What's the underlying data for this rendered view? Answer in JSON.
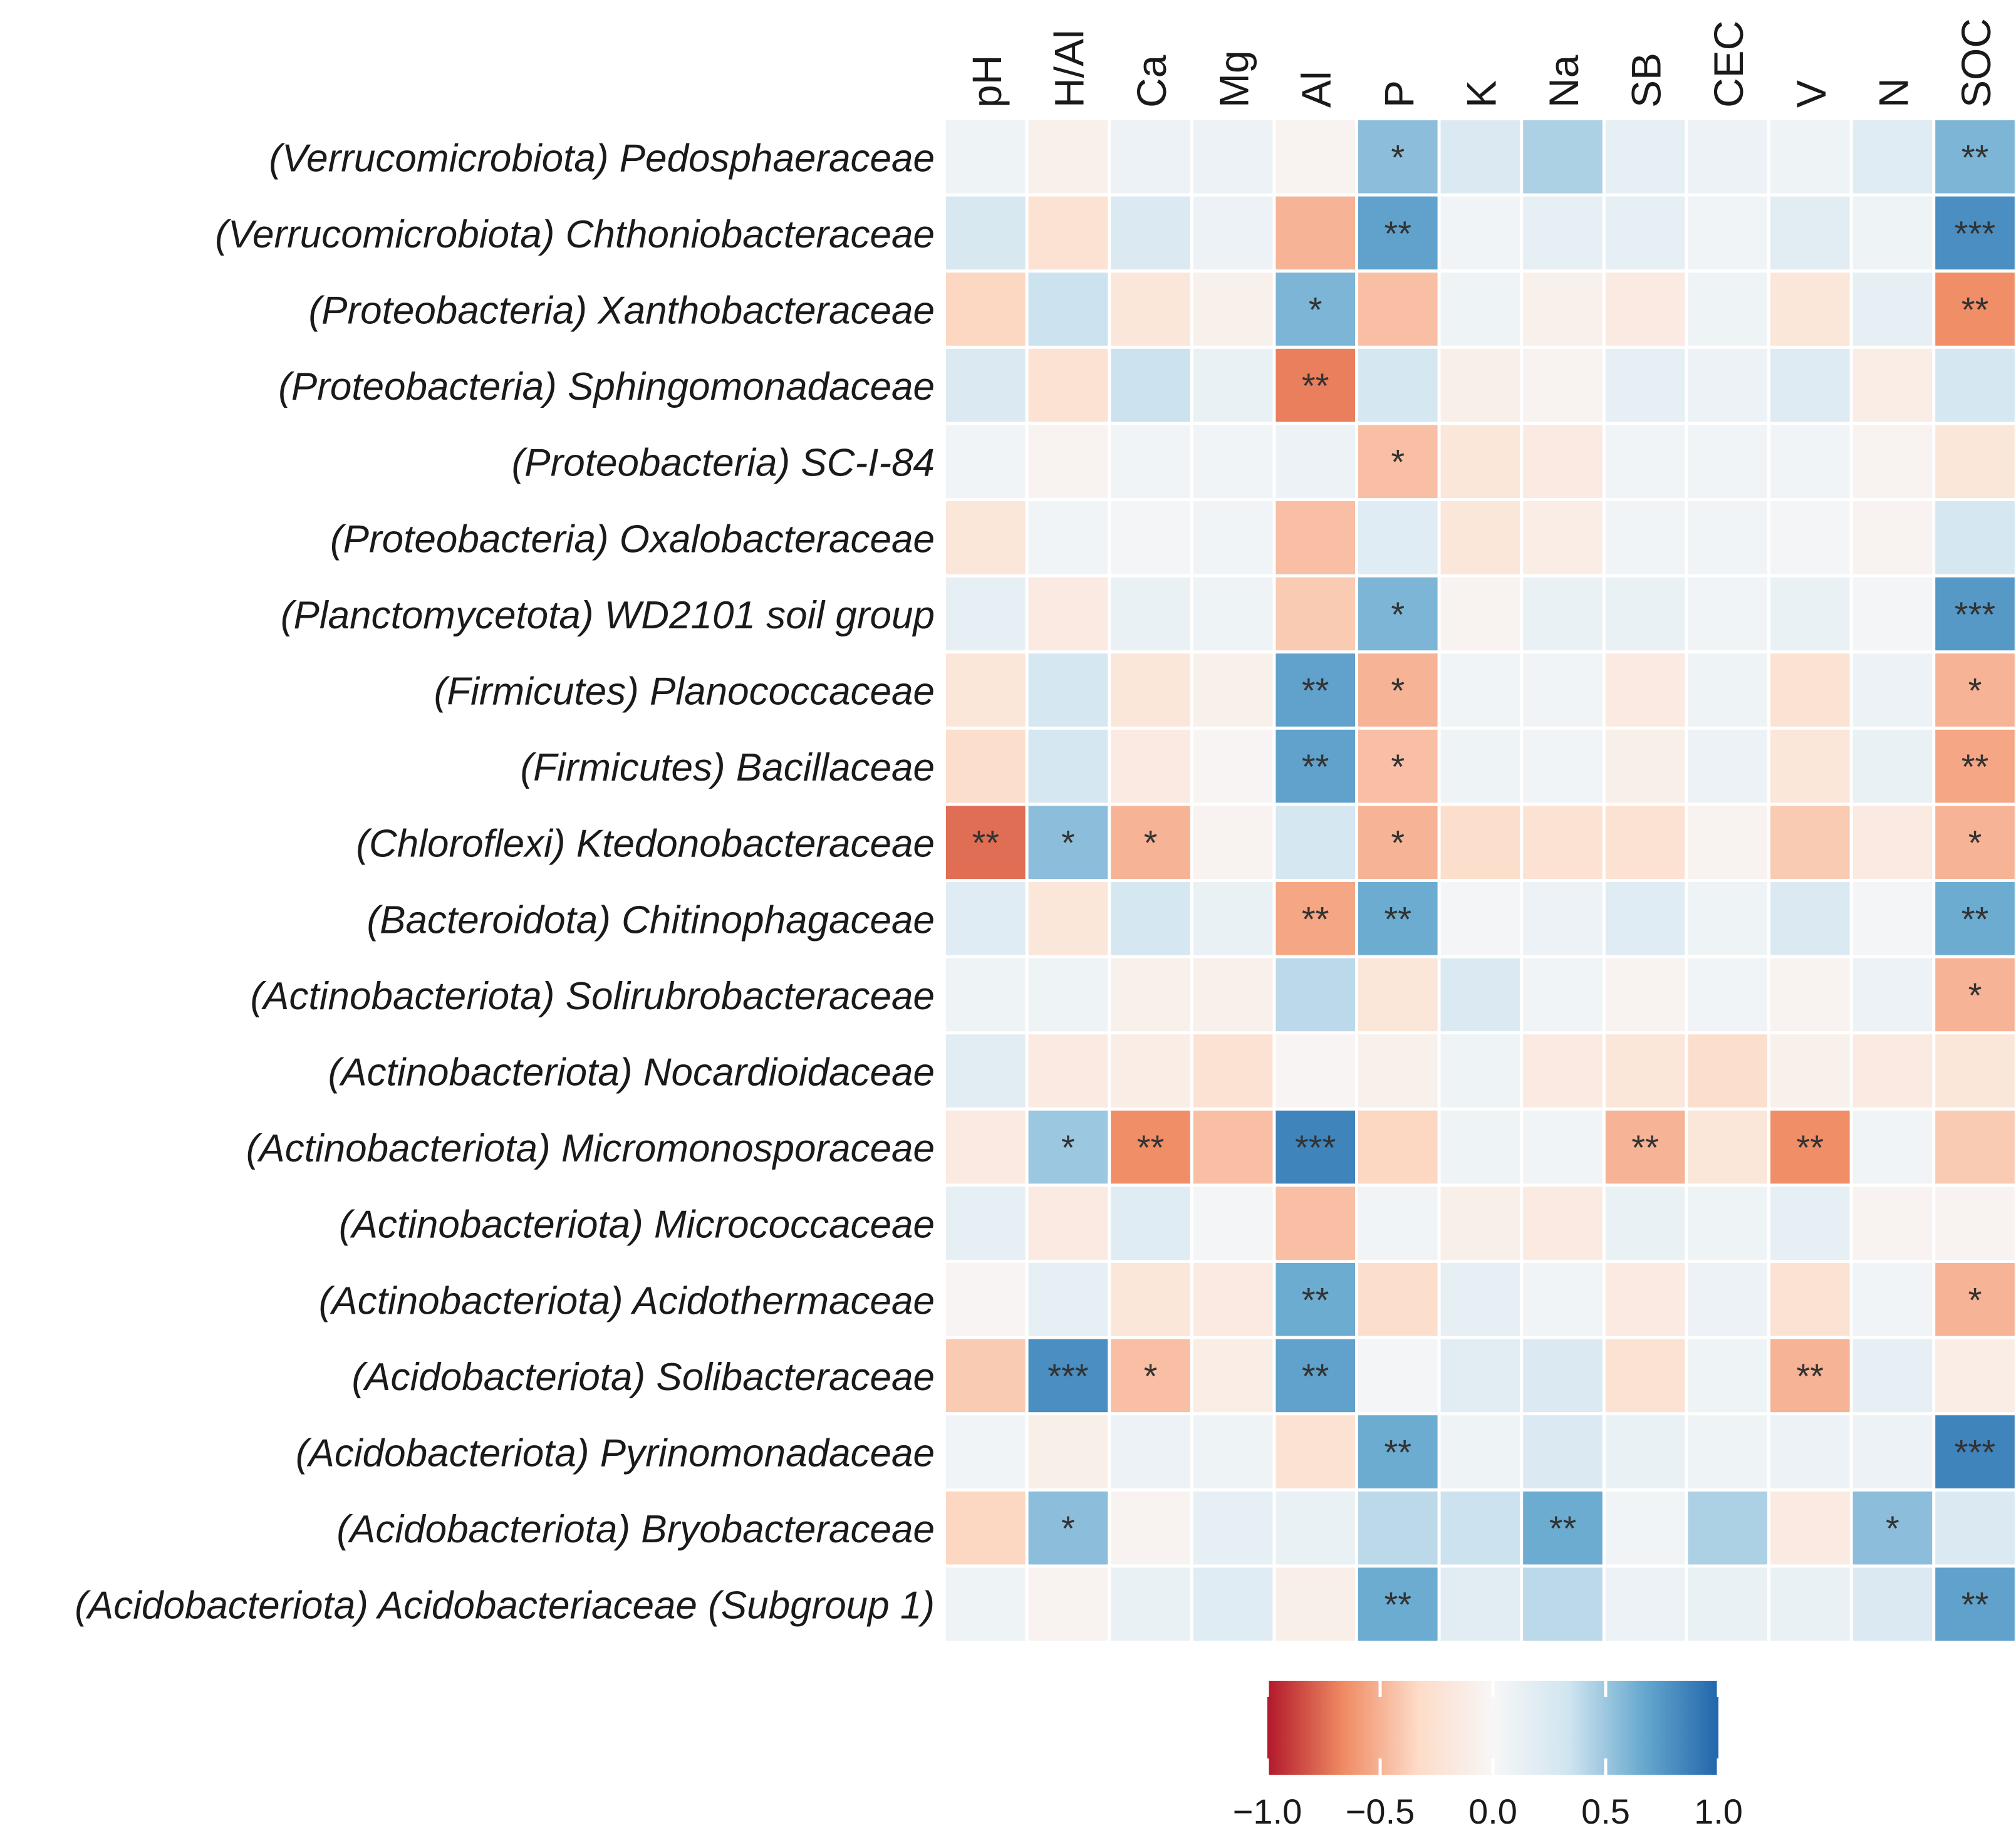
{
  "chart_data": {
    "type": "heatmap",
    "title": "",
    "columns": [
      "pH",
      "H/Al",
      "Ca",
      "Mg",
      "Al",
      "P",
      "K",
      "Na",
      "SB",
      "CEC",
      "V",
      "N",
      "SOC"
    ],
    "rows": [
      "(Verrucomicrobiota) Pedosphaeraceae",
      "(Verrucomicrobiota) Chthoniobacteraceae",
      "(Proteobacteria) Xanthobacteraceae",
      "(Proteobacteria) Sphingomonadaceae",
      "(Proteobacteria) SC-I-84",
      "(Proteobacteria) Oxalobacteraceae",
      "(Planctomycetota) WD2101 soil group",
      "(Firmicutes) Planococcaceae",
      "(Firmicutes) Bacillaceae",
      "(Chloroflexi) Ktedonobacteraceae",
      "(Bacteroidota) Chitinophagaceae",
      "(Actinobacteriota) Solirubrobacteraceae",
      "(Actinobacteriota) Nocardioidaceae",
      "(Actinobacteriota) Micromonosporaceae",
      "(Actinobacteriota) Micrococcaceae",
      "(Actinobacteriota) Acidothermaceae",
      "(Acidobacteriota) Solibacteraceae",
      "(Acidobacteriota) Pyrinomonadaceae",
      "(Acidobacteriota) Bryobacteraceae",
      "(Acidobacteriota) Acidobacteriaceae (Subgroup 1)"
    ],
    "values": [
      [
        0.08,
        -0.08,
        0.1,
        0.1,
        -0.05,
        0.55,
        0.25,
        0.45,
        0.15,
        0.1,
        0.08,
        0.2,
        0.6
      ],
      [
        0.28,
        -0.25,
        0.25,
        0.1,
        -0.5,
        0.7,
        0.05,
        0.15,
        0.15,
        0.05,
        0.18,
        0.08,
        0.8
      ],
      [
        -0.35,
        0.35,
        -0.2,
        -0.08,
        0.6,
        -0.45,
        0.08,
        -0.08,
        -0.15,
        0.08,
        -0.2,
        0.15,
        -0.65
      ],
      [
        0.25,
        -0.25,
        0.35,
        0.12,
        -0.7,
        0.3,
        -0.1,
        -0.05,
        0.15,
        0.1,
        0.22,
        -0.12,
        0.3
      ],
      [
        0.05,
        -0.05,
        0.05,
        0.05,
        0.1,
        -0.45,
        -0.2,
        -0.15,
        0.05,
        0.05,
        0.05,
        -0.05,
        -0.2
      ],
      [
        -0.2,
        0.05,
        0.03,
        0.05,
        -0.45,
        0.2,
        -0.2,
        -0.12,
        0.05,
        0.05,
        0.03,
        -0.05,
        0.3
      ],
      [
        0.15,
        -0.15,
        0.12,
        0.08,
        -0.4,
        0.6,
        -0.05,
        0.12,
        0.12,
        0.05,
        0.12,
        0.03,
        0.75
      ],
      [
        -0.2,
        0.3,
        -0.2,
        -0.08,
        0.7,
        -0.5,
        0.05,
        0.05,
        -0.15,
        0.08,
        -0.25,
        0.1,
        -0.5
      ],
      [
        -0.3,
        0.3,
        -0.15,
        -0.03,
        0.7,
        -0.45,
        0.08,
        0.05,
        -0.1,
        0.1,
        -0.2,
        0.12,
        -0.55
      ],
      [
        -0.75,
        0.55,
        -0.5,
        -0.05,
        0.3,
        -0.5,
        -0.3,
        -0.25,
        -0.25,
        -0.05,
        -0.4,
        -0.15,
        -0.5
      ],
      [
        0.2,
        -0.2,
        0.3,
        0.12,
        -0.55,
        0.65,
        0.03,
        0.1,
        0.2,
        0.08,
        0.25,
        0.03,
        0.65
      ],
      [
        0.08,
        0.08,
        -0.08,
        -0.08,
        0.4,
        -0.2,
        0.25,
        0.05,
        -0.05,
        0.05,
        -0.05,
        0.1,
        -0.5
      ],
      [
        0.18,
        -0.15,
        -0.12,
        -0.25,
        -0.03,
        -0.08,
        0.08,
        -0.15,
        -0.2,
        -0.3,
        -0.08,
        -0.15,
        -0.2
      ],
      [
        -0.15,
        0.5,
        -0.65,
        -0.45,
        0.85,
        -0.35,
        0.08,
        0.05,
        -0.5,
        -0.2,
        -0.65,
        0.05,
        -0.4
      ],
      [
        0.15,
        -0.15,
        0.2,
        0.03,
        -0.45,
        0.05,
        -0.1,
        -0.15,
        0.12,
        0.08,
        0.15,
        -0.05,
        -0.05
      ],
      [
        -0.03,
        0.15,
        -0.2,
        -0.15,
        0.65,
        -0.3,
        0.15,
        0.05,
        -0.15,
        0.1,
        -0.25,
        0.05,
        -0.5
      ],
      [
        -0.4,
        0.8,
        -0.45,
        -0.12,
        0.7,
        0.03,
        0.18,
        0.25,
        -0.25,
        0.08,
        -0.5,
        0.15,
        -0.12
      ],
      [
        0.05,
        -0.1,
        0.1,
        0.08,
        -0.25,
        0.65,
        0.08,
        0.25,
        0.12,
        0.08,
        0.1,
        0.1,
        0.85
      ],
      [
        -0.35,
        0.55,
        -0.05,
        0.15,
        0.12,
        0.4,
        0.35,
        0.65,
        0.05,
        0.45,
        -0.15,
        0.55,
        0.25
      ],
      [
        0.08,
        -0.05,
        0.12,
        0.2,
        -0.1,
        0.65,
        0.18,
        0.4,
        0.1,
        0.12,
        0.12,
        0.25,
        0.7
      ]
    ],
    "annotations": [
      [
        "",
        "",
        "",
        "",
        "",
        "*",
        "",
        "",
        "",
        "",
        "",
        "",
        "**"
      ],
      [
        "",
        "",
        "",
        "",
        "",
        "**",
        "",
        "",
        "",
        "",
        "",
        "",
        "***"
      ],
      [
        "",
        "",
        "",
        "",
        "*",
        "",
        "",
        "",
        "",
        "",
        "",
        "",
        "**"
      ],
      [
        "",
        "",
        "",
        "",
        "**",
        "",
        "",
        "",
        "",
        "",
        "",
        "",
        ""
      ],
      [
        "",
        "",
        "",
        "",
        "",
        "*",
        "",
        "",
        "",
        "",
        "",
        "",
        ""
      ],
      [
        "",
        "",
        "",
        "",
        "",
        "",
        "",
        "",
        "",
        "",
        "",
        "",
        ""
      ],
      [
        "",
        "",
        "",
        "",
        "",
        "*",
        "",
        "",
        "",
        "",
        "",
        "",
        "***"
      ],
      [
        "",
        "",
        "",
        "",
        "**",
        "*",
        "",
        "",
        "",
        "",
        "",
        "",
        "*"
      ],
      [
        "",
        "",
        "",
        "",
        "**",
        "*",
        "",
        "",
        "",
        "",
        "",
        "",
        "**"
      ],
      [
        "**",
        "*",
        "*",
        "",
        "",
        "*",
        "",
        "",
        "",
        "",
        "",
        "",
        "*"
      ],
      [
        "",
        "",
        "",
        "",
        "**",
        "**",
        "",
        "",
        "",
        "",
        "",
        "",
        "**"
      ],
      [
        "",
        "",
        "",
        "",
        "",
        "",
        "",
        "",
        "",
        "",
        "",
        "",
        "*"
      ],
      [
        "",
        "",
        "",
        "",
        "",
        "",
        "",
        "",
        "",
        "",
        "",
        "",
        ""
      ],
      [
        "",
        "*",
        "**",
        "",
        "***",
        "",
        "",
        "",
        "**",
        "",
        "**",
        "",
        ""
      ],
      [
        "",
        "",
        "",
        "",
        "",
        "",
        "",
        "",
        "",
        "",
        "",
        "",
        ""
      ],
      [
        "",
        "",
        "",
        "",
        "**",
        "",
        "",
        "",
        "",
        "",
        "",
        "",
        "*"
      ],
      [
        "",
        "***",
        "*",
        "",
        "**",
        "",
        "",
        "",
        "",
        "",
        "**",
        "",
        ""
      ],
      [
        "",
        "",
        "",
        "",
        "",
        "**",
        "",
        "",
        "",
        "",
        "",
        "",
        "***"
      ],
      [
        "",
        "*",
        "",
        "",
        "",
        "",
        "",
        "**",
        "",
        "",
        "",
        "*",
        ""
      ],
      [
        "",
        "",
        "",
        "",
        "",
        "**",
        "",
        "",
        "",
        "",
        "",
        "",
        "**"
      ]
    ],
    "color_scale": {
      "min": -1.0,
      "max": 1.0,
      "ticks": [
        -1.0,
        -0.5,
        0.0,
        0.5,
        1.0
      ],
      "tick_labels": [
        "−1.0",
        "−0.5",
        "0.0",
        "0.5",
        "1.0"
      ],
      "stops": [
        "#b2182b",
        "#ef8a62",
        "#fddbc7",
        "#f7f7f7",
        "#d1e5f0",
        "#67a9cf",
        "#2166ac"
      ]
    },
    "legend_position": "bottom",
    "grid": false
  }
}
